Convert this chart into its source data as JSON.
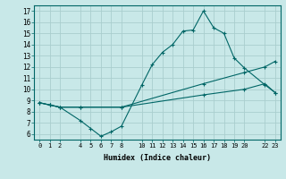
{
  "xlabel": "Humidex (Indice chaleur)",
  "bg_color": "#c8e8e8",
  "grid_color": "#aacece",
  "line_color": "#006666",
  "ylim": [
    5.5,
    17.5
  ],
  "xlim": [
    -0.5,
    23.5
  ],
  "yticks": [
    6,
    7,
    8,
    9,
    10,
    11,
    12,
    13,
    14,
    15,
    16,
    17
  ],
  "xticks": [
    0,
    1,
    2,
    4,
    5,
    6,
    7,
    8,
    10,
    11,
    12,
    13,
    14,
    15,
    16,
    17,
    18,
    19,
    20,
    22,
    23
  ],
  "line1_x": [
    0,
    1,
    2,
    4,
    5,
    6,
    7,
    8,
    10,
    11,
    12,
    13,
    14,
    15,
    16,
    17,
    18,
    19,
    20,
    22,
    23
  ],
  "line1_y": [
    8.8,
    8.6,
    8.4,
    7.2,
    6.5,
    5.8,
    6.2,
    6.7,
    10.4,
    12.2,
    13.3,
    14.0,
    15.2,
    15.3,
    17.0,
    15.5,
    15.0,
    12.8,
    11.9,
    10.4,
    9.7
  ],
  "line2_x": [
    0,
    1,
    2,
    4,
    8,
    16,
    20,
    22,
    23
  ],
  "line2_y": [
    8.8,
    8.6,
    8.4,
    8.4,
    8.4,
    10.5,
    11.5,
    12.0,
    12.5
  ],
  "line3_x": [
    0,
    1,
    2,
    4,
    8,
    16,
    20,
    22,
    23
  ],
  "line3_y": [
    8.8,
    8.6,
    8.4,
    8.4,
    8.4,
    9.5,
    10.0,
    10.5,
    9.7
  ]
}
